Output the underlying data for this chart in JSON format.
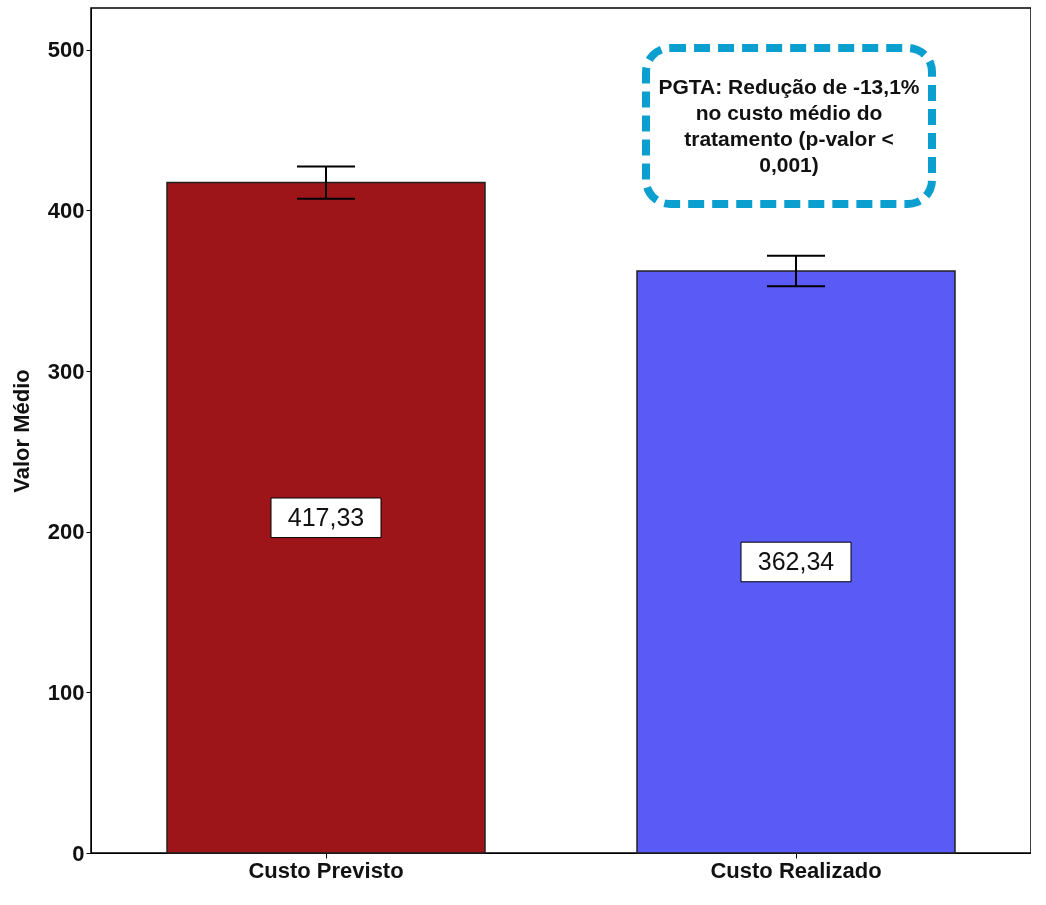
{
  "chart_data": {
    "type": "bar",
    "ylabel": "Valor Médio",
    "categories": [
      "Custo Previsto",
      "Custo Realizado"
    ],
    "values": [
      417.33,
      362.34
    ],
    "colors": [
      "#9e1519",
      "#5a5af7"
    ],
    "value_labels": [
      "417,33",
      "362,34"
    ],
    "errors": [
      10,
      9.5
    ],
    "ylim": [
      0,
      526
    ],
    "yticks": [
      0,
      100,
      200,
      300,
      400,
      500
    ],
    "grid": false,
    "annotations": [
      "PGTA: Redução de -13,1% no custo médio do tratamento (p-valor < 0,001)"
    ]
  }
}
